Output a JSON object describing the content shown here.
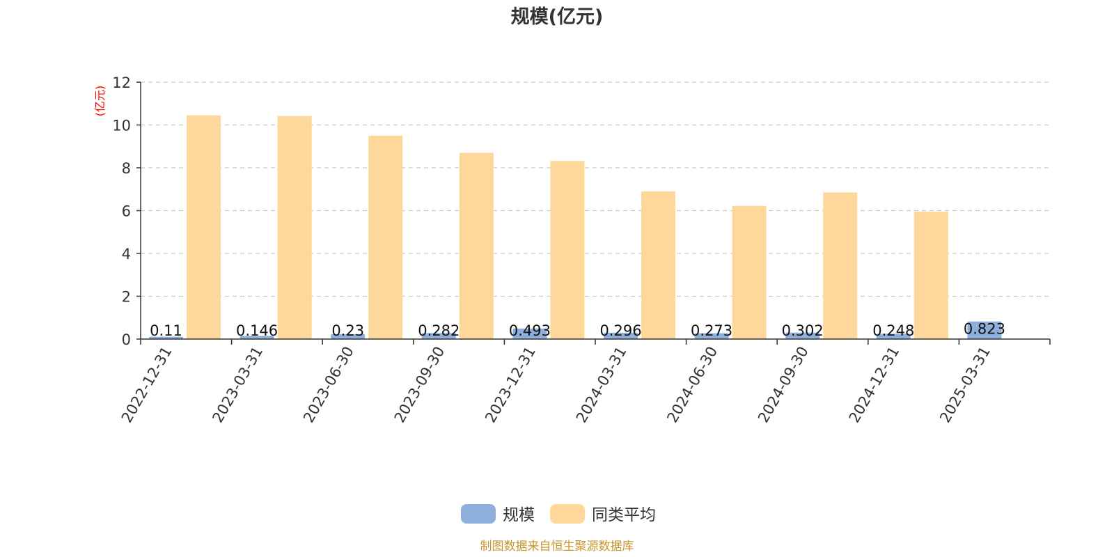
{
  "chart_data": {
    "type": "bar",
    "title": "规模(亿元)",
    "ylabel": "(亿元)",
    "ylim": [
      0,
      12
    ],
    "yticks": [
      0,
      2,
      4,
      6,
      8,
      10,
      12
    ],
    "grid": true,
    "legend_position": "bottom-center",
    "categories": [
      "2022-12-31",
      "2023-03-31",
      "2023-06-30",
      "2023-09-30",
      "2023-12-31",
      "2024-03-31",
      "2024-06-30",
      "2024-09-30",
      "2024-12-31",
      "2025-03-31"
    ],
    "series": [
      {
        "name": "规模",
        "color": "#8eaedb",
        "values": [
          0.11,
          0.146,
          0.23,
          0.282,
          0.493,
          0.296,
          0.273,
          0.302,
          0.248,
          0.823
        ],
        "labels": [
          "0.11",
          "0.146",
          "0.23",
          "0.282",
          "0.493",
          "0.296",
          "0.273",
          "0.302",
          "0.248",
          "0.823"
        ]
      },
      {
        "name": "同类平均",
        "color": "#fed89b",
        "values": [
          10.45,
          10.42,
          9.5,
          8.7,
          8.32,
          6.9,
          6.22,
          6.85,
          5.95,
          null
        ]
      }
    ]
  },
  "source": "制图数据来自恒生聚源数据库",
  "colors": {
    "unit_label": "#ff0000",
    "source": "#c8962a",
    "grid": "#cccccc",
    "axis": "#333333"
  }
}
